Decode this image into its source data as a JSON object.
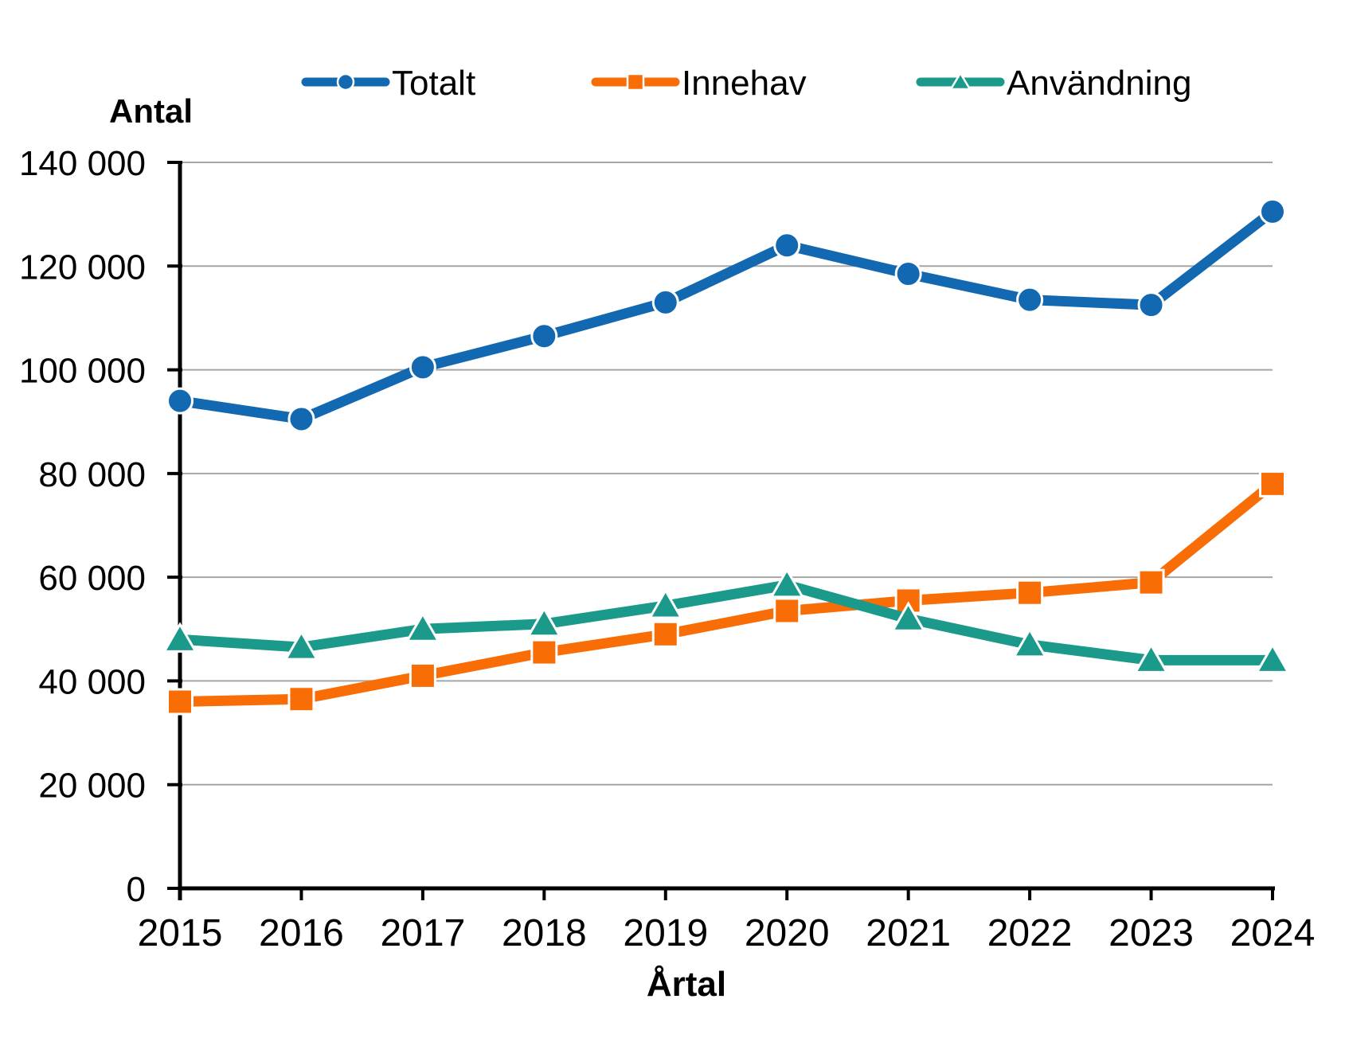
{
  "chart_data": {
    "type": "line",
    "title": "",
    "ylabel": "Antal",
    "xlabel": "Årtal",
    "categories": [
      "2015",
      "2016",
      "2017",
      "2018",
      "2019",
      "2020",
      "2021",
      "2022",
      "2023",
      "2024"
    ],
    "series": [
      {
        "name": "Totalt",
        "marker": "circle",
        "color": "#1268b1",
        "values": [
          94000,
          90500,
          100500,
          106500,
          113000,
          124000,
          118500,
          113500,
          112500,
          130500
        ]
      },
      {
        "name": "Innehav",
        "marker": "square",
        "color": "#f96d07",
        "values": [
          36000,
          36500,
          41000,
          45500,
          49000,
          53500,
          55500,
          57000,
          59000,
          78000
        ]
      },
      {
        "name": "Användning",
        "marker": "triangle",
        "color": "#1b9a8c",
        "values": [
          48000,
          46500,
          50000,
          51000,
          54500,
          58500,
          52000,
          47000,
          44000,
          44000
        ]
      }
    ],
    "ylim": [
      0,
      140000
    ],
    "ytick_step": 20000,
    "y_tick_labels": [
      "0",
      "20 000",
      "40 000",
      "60 000",
      "80 000",
      "100 000",
      "120 000",
      "140 000"
    ],
    "grid": "horizontal",
    "grid_color": "#a6a6a6",
    "axis_color": "#000000",
    "legend_position": "top"
  }
}
